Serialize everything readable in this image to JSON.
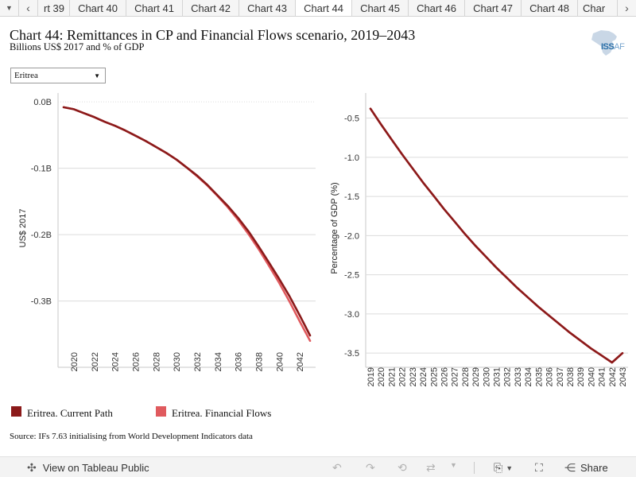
{
  "tabbar": {
    "tabs": [
      "rt 39",
      "Chart 40",
      "Chart 41",
      "Chart 42",
      "Chart 43",
      "Chart 44",
      "Chart 45",
      "Chart 46",
      "Chart 47",
      "Chart 48",
      "Char"
    ],
    "active_index": 5
  },
  "header": {
    "title": "Chart 44: Remittances in CP and Financial Flows scenario, 2019–2043",
    "subtitle": "Billions US$ 2017 and % of GDP"
  },
  "logo": {
    "text_main": "ISS",
    "text_sub": "AF"
  },
  "filter": {
    "selected": "Eritrea"
  },
  "colors": {
    "current_path": "#8b1a1a",
    "financial_flows": "#e05a5e",
    "grid": "#dcdcdc"
  },
  "chart_data": [
    {
      "type": "line",
      "ylabel": "US$ 2017",
      "x": [
        2019,
        2020,
        2021,
        2022,
        2023,
        2024,
        2025,
        2026,
        2027,
        2028,
        2029,
        2030,
        2031,
        2032,
        2033,
        2034,
        2035,
        2036,
        2037,
        2038,
        2039,
        2040,
        2041,
        2042,
        2043
      ],
      "x_tick_labels": [
        "2020",
        "2022",
        "2024",
        "2026",
        "2028",
        "2030",
        "2032",
        "2034",
        "2036",
        "2038",
        "2040",
        "2042"
      ],
      "y_ticks": [
        0,
        -0.1,
        -0.2,
        -0.3
      ],
      "y_tick_labels": [
        "0.0B",
        "-0.1B",
        "-0.2B",
        "-0.3B"
      ],
      "ylim": [
        -0.37,
        0.005
      ],
      "series": [
        {
          "name": "Eritrea. Current Path",
          "values": [
            -0.008,
            -0.011,
            -0.017,
            -0.023,
            -0.03,
            -0.036,
            -0.043,
            -0.051,
            -0.059,
            -0.068,
            -0.077,
            -0.087,
            -0.099,
            -0.111,
            -0.125,
            -0.141,
            -0.157,
            -0.175,
            -0.195,
            -0.218,
            -0.242,
            -0.267,
            -0.293,
            -0.322,
            -0.352
          ]
        },
        {
          "name": "Eritrea. Financial Flows",
          "values": [
            -0.008,
            -0.011,
            -0.017,
            -0.023,
            -0.03,
            -0.036,
            -0.043,
            -0.051,
            -0.059,
            -0.068,
            -0.077,
            -0.087,
            -0.099,
            -0.112,
            -0.126,
            -0.142,
            -0.159,
            -0.178,
            -0.199,
            -0.222,
            -0.247,
            -0.273,
            -0.301,
            -0.331,
            -0.36
          ]
        }
      ]
    },
    {
      "type": "line",
      "ylabel": "Percentage of GDP (%)",
      "x": [
        2019,
        2020,
        2021,
        2022,
        2023,
        2024,
        2025,
        2026,
        2027,
        2028,
        2029,
        2030,
        2031,
        2032,
        2033,
        2034,
        2035,
        2036,
        2037,
        2038,
        2039,
        2040,
        2041,
        2042,
        2043
      ],
      "x_tick_labels": [
        "2019",
        "2020",
        "2021",
        "2022",
        "2023",
        "2024",
        "2025",
        "2026",
        "2027",
        "2028",
        "2029",
        "2030",
        "2031",
        "2032",
        "2033",
        "2034",
        "2035",
        "2036",
        "2037",
        "2038",
        "2039",
        "2040",
        "2041",
        "2042",
        "2043"
      ],
      "y_ticks": [
        -0.5,
        -1.0,
        -1.5,
        -2.0,
        -2.5,
        -3.0,
        -3.5
      ],
      "y_tick_labels": [
        "-0.5",
        "-1.0",
        "-1.5",
        "-2.0",
        "-2.5",
        "-3.0",
        "-3.5"
      ],
      "ylim": [
        -3.62,
        -0.2
      ],
      "series": [
        {
          "name": "Eritrea. Current Path",
          "values": [
            -0.38,
            -0.58,
            -0.77,
            -0.96,
            -1.14,
            -1.32,
            -1.49,
            -1.66,
            -1.82,
            -1.98,
            -2.13,
            -2.27,
            -2.41,
            -2.54,
            -2.67,
            -2.79,
            -2.91,
            -3.02,
            -3.13,
            -3.24,
            -3.34,
            -3.44,
            -3.53,
            -3.62,
            -3.5
          ]
        },
        {
          "name": "Eritrea. Financial Flows",
          "values": [
            -0.38,
            -0.58,
            -0.77,
            -0.96,
            -1.14,
            -1.32,
            -1.49,
            -1.66,
            -1.82,
            -1.98,
            -2.13,
            -2.27,
            -2.41,
            -2.54,
            -2.67,
            -2.79,
            -2.91,
            -3.02,
            -3.13,
            -3.24,
            -3.34,
            -3.44,
            -3.53,
            -3.62,
            -3.5
          ]
        }
      ]
    }
  ],
  "legend": {
    "items": [
      "Eritrea. Current Path",
      "Eritrea. Financial Flows"
    ]
  },
  "source": "Source: IFs 7.63 initialising from World Development Indicators data",
  "toolbar": {
    "view_label": "View on Tableau Public",
    "share_label": "Share"
  }
}
